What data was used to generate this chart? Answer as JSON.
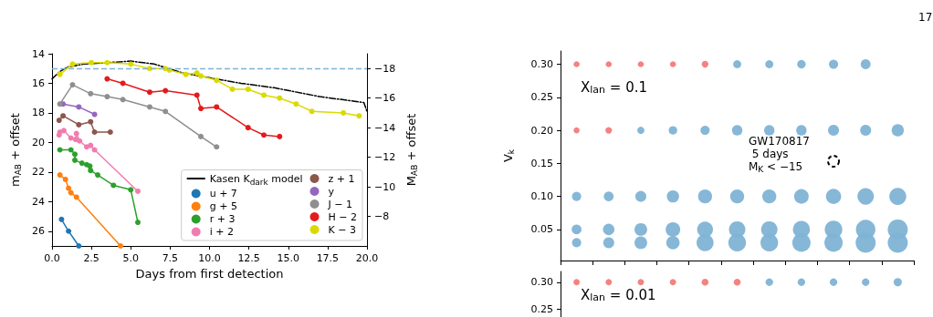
{
  "chart_data": [
    {
      "type": "line",
      "xlabel": "Days from first detection",
      "ylabel": "m$_{AB}$ + offset",
      "y2label": "M$_{AB}$ + offset",
      "xlim": [
        0,
        20
      ],
      "xticks": [
        {
          "value": 0,
          "label": "0.0"
        },
        {
          "value": 2.5,
          "label": "2.5"
        },
        {
          "value": 5,
          "label": "5.0"
        },
        {
          "value": 7.5,
          "label": "7.5"
        },
        {
          "value": 10,
          "label": "10.0"
        },
        {
          "value": 12.5,
          "label": "12.5"
        },
        {
          "value": 15,
          "label": "15.0"
        },
        {
          "value": 17.5,
          "label": "17.5"
        },
        {
          "value": 20,
          "label": "20.0"
        }
      ],
      "ylim": [
        27,
        14
      ],
      "yticks": [
        14,
        16,
        18,
        20,
        22,
        24,
        26
      ],
      "y2lim": [
        -6,
        -19
      ],
      "y2ticks": [
        -18,
        -16,
        -14,
        -12,
        -10,
        -8
      ],
      "grid": false,
      "legend": "bottom right",
      "marker": "circle",
      "ref_lines": [
        {
          "axis": "y",
          "value": 15,
          "color": "#7fb2d6",
          "line_style": "dashed"
        }
      ],
      "series": [
        {
          "name": "Kasen K$_{dark}$ model",
          "color": "#000000",
          "marker": "none",
          "line_style": "dashed",
          "x": [
            0,
            0.5,
            1,
            2,
            3.5,
            5,
            6.5,
            8.3,
            10.4,
            12,
            14.1,
            17,
            19.8,
            20
          ],
          "values": [
            15.7,
            15.2,
            14.9,
            14.7,
            14.6,
            14.5,
            14.7,
            15.3,
            15.7,
            16.0,
            16.3,
            16.9,
            17.3,
            17.9
          ]
        },
        {
          "name": "u + 7",
          "color": "#1f77b4",
          "x": [
            0.6,
            1.05,
            1.7
          ],
          "values": [
            25.2,
            26.0,
            27
          ]
        },
        {
          "name": "g + 5",
          "color": "#ff7f0e",
          "x": [
            0.5,
            0.85,
            1.05,
            1.2,
            1.55,
            4.35
          ],
          "values": [
            22.2,
            22.5,
            23.1,
            23.4,
            23.7,
            27
          ]
        },
        {
          "name": "r + 3",
          "color": "#2ca02c",
          "x": [
            0.5,
            1.2,
            1.45,
            1.45,
            1.9,
            2.2,
            2.4,
            2.45,
            2.9,
            3.9,
            5.0,
            5.45
          ],
          "values": [
            20.5,
            20.5,
            20.8,
            21.2,
            21.4,
            21.5,
            21.6,
            21.9,
            22.2,
            22.9,
            23.2,
            25.4
          ]
        },
        {
          "name": "i + 2",
          "color": "#f17cb0",
          "x": [
            0.45,
            0.5,
            0.75,
            1.2,
            1.5,
            1.55,
            1.75,
            2.2,
            2.45,
            2.7,
            5.45
          ],
          "values": [
            19.5,
            19.3,
            19.2,
            19.7,
            19.8,
            19.4,
            19.9,
            20.3,
            20.2,
            20.5,
            23.3
          ]
        },
        {
          "name": "z + 1",
          "color": "#8c564b",
          "x": [
            0.45,
            0.7,
            1.7,
            2.45,
            2.7,
            3.7
          ],
          "values": [
            18.5,
            18.2,
            18.8,
            18.6,
            19.3,
            19.3
          ]
        },
        {
          "name": "y",
          "color": "#9467bd",
          "x": [
            0.7,
            1.7,
            2.7
          ],
          "values": [
            17.4,
            17.6,
            18.1
          ]
        },
        {
          "name": "J − 1",
          "color": "#8f8f8f",
          "x": [
            0.5,
            1.3,
            2.45,
            3.5,
            4.5,
            6.2,
            7.2,
            9.45,
            10.45
          ],
          "values": [
            17.4,
            16.1,
            16.7,
            16.9,
            17.1,
            17.6,
            17.9,
            19.6,
            20.3
          ]
        },
        {
          "name": "H − 2",
          "color": "#e41a1c",
          "x": [
            3.5,
            4.5,
            6.2,
            7.2,
            9.2,
            9.45,
            10.45,
            12.45,
            13.45,
            14.45
          ],
          "values": [
            15.7,
            16.0,
            16.6,
            16.5,
            16.8,
            17.7,
            17.6,
            19.0,
            19.5,
            19.6
          ]
        },
        {
          "name": "K − 3",
          "color": "#dada00",
          "x": [
            0.5,
            1.3,
            2.5,
            3.5,
            5.0,
            6.2,
            7.2,
            7.45,
            8.5,
            9.2,
            9.45,
            10.45,
            11.45,
            12.45,
            13.45,
            14.45,
            15.5,
            16.5,
            18.5,
            19.5
          ],
          "values": [
            15.4,
            14.7,
            14.6,
            14.6,
            14.7,
            15.0,
            15.0,
            15.1,
            15.4,
            15.3,
            15.5,
            15.8,
            16.4,
            16.4,
            16.8,
            17.0,
            17.4,
            17.9,
            18.0,
            18.2
          ]
        }
      ]
    },
    {
      "type": "bubble",
      "ylabel": "V$_{k}$",
      "annotations": [
        "X$_{lan}$ = 0.1",
        "GW170817\n 5 days\nM$_{K}$ < −15",
        "17"
      ],
      "categories": [
        null,
        null,
        null,
        null,
        null,
        null,
        null,
        null,
        null,
        null,
        null
      ],
      "ylim": [
        0.003,
        0.32
      ],
      "yticks": [
        {
          "value": 0.05,
          "label": "0.05"
        },
        {
          "value": 0.1,
          "label": "0.10"
        },
        {
          "value": 0.15,
          "label": "0.15"
        },
        {
          "value": 0.2,
          "label": "0.20"
        },
        {
          "value": 0.25,
          "label": "0.25"
        },
        {
          "value": 0.3,
          "label": "0.30"
        }
      ],
      "tick_labels": "y",
      "grid": false,
      "legend": false,
      "series": [
        {
          "values": [
            0.3,
            0.3,
            0.3,
            0.3,
            0.3,
            0.3,
            0.3,
            0.3,
            0.3,
            0.3,
            null
          ],
          "sizes": [
            0.09,
            0.09,
            0.09,
            0.09,
            0.11,
            0.16,
            0.16,
            0.18,
            0.21,
            0.24,
            null
          ],
          "colors": [
            "#f47a7a",
            "#f47a7a",
            "#f47a7a",
            "#f47a7a",
            "#f47a7a",
            "#7fb3d5",
            "#7fb3d5",
            "#7fb3d5",
            "#7fb3d5",
            "#7fb3d5",
            null
          ]
        },
        {
          "values": [
            0.2,
            0.2,
            0.2,
            0.2,
            0.2,
            0.2,
            0.2,
            0.2,
            0.2,
            0.2,
            0.2
          ],
          "sizes": [
            0.09,
            0.11,
            0.13,
            0.18,
            0.21,
            0.27,
            0.27,
            0.27,
            0.3,
            0.3,
            0.37
          ],
          "colors": [
            "#f47a7a",
            "#f47a7a",
            "#7fb3d5",
            "#7fb3d5",
            "#7fb3d5",
            "#7fb3d5",
            "#7fb3d5",
            "#7fb3d5",
            "#7fb3d5",
            "#7fb3d5",
            "#7fb3d5"
          ]
        },
        {
          "values": [
            0.1,
            0.1,
            0.1,
            0.1,
            0.1,
            0.1,
            0.1,
            0.1,
            0.1,
            0.1,
            0.1
          ],
          "sizes": [
            0.21,
            0.24,
            0.3,
            0.37,
            0.49,
            0.49,
            0.49,
            0.53,
            0.57,
            0.67,
            0.72
          ],
          "color": "#7fb3d5"
        },
        {
          "values": [
            0.05,
            0.05,
            0.05,
            0.05,
            0.05,
            0.05,
            0.05,
            0.05,
            0.05,
            0.05,
            0.05
          ],
          "sizes": [
            0.24,
            0.33,
            0.4,
            0.53,
            0.62,
            0.67,
            0.67,
            0.72,
            0.77,
            0.94,
            1
          ],
          "color": "#7fb3d5"
        },
        {
          "values": [
            0.03,
            0.03,
            0.03,
            0.03,
            0.03,
            0.03,
            0.03,
            0.03,
            0.03,
            0.03,
            0.03
          ],
          "sizes": [
            0.21,
            0.3,
            0.4,
            0.44,
            0.72,
            0.77,
            0.77,
            0.83,
            0.83,
            1,
            1
          ],
          "color": "#7fb3d5"
        }
      ]
    },
    {
      "type": "bubble",
      "annotations": [
        "X$_{lan}$ = 0.01"
      ],
      "categories": [
        null,
        null,
        null,
        null,
        null,
        null,
        null,
        null,
        null,
        null,
        null
      ],
      "ylim": [
        0.235,
        0.32
      ],
      "yticks": [
        {
          "value": 0.25,
          "label": "0.25"
        },
        {
          "value": 0.3,
          "label": "0.30"
        }
      ],
      "tick_labels": "y",
      "grid": false,
      "legend": false,
      "series": [
        {
          "values": [
            0.3,
            0.3,
            0.3,
            0.3,
            0.3,
            0.3,
            0.3,
            0.3,
            0.3,
            0.3,
            0.3
          ],
          "sizes": [
            0.59,
            0.59,
            0.59,
            0.59,
            0.72,
            0.72,
            0.85,
            0.85,
            0.85,
            0.85,
            1
          ],
          "colors": [
            "#f47a7a",
            "#f47a7a",
            "#f47a7a",
            "#f47a7a",
            "#f47a7a",
            "#f47a7a",
            "#7fb3d5",
            "#7fb3d5",
            "#7fb3d5",
            "#7fb3d5",
            "#7fb3d5"
          ]
        }
      ]
    }
  ]
}
